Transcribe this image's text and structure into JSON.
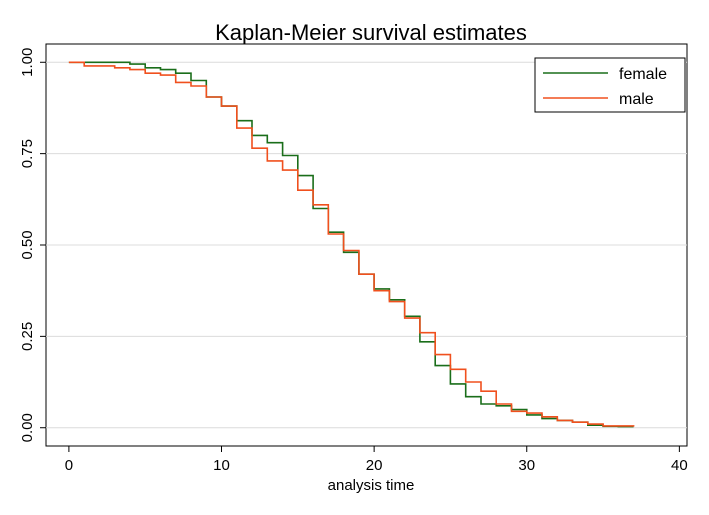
{
  "chart_data": {
    "type": "line",
    "step": true,
    "title": "Kaplan-Meier survival estimates",
    "xlabel": "analysis time",
    "ylabel": "",
    "xlim": [
      -1.5,
      40.5
    ],
    "ylim": [
      -0.05,
      1.05
    ],
    "x_ticks": [
      0,
      10,
      20,
      30,
      40
    ],
    "x_tick_labels": [
      "0",
      "10",
      "20",
      "30",
      "40"
    ],
    "y_ticks": [
      0,
      0.25,
      0.5,
      0.75,
      1.0
    ],
    "y_tick_labels": [
      "0.00",
      "0.25",
      "0.50",
      "0.75",
      "1.00"
    ],
    "grid": "horizontal",
    "legend_position": "top-right",
    "series": [
      {
        "name": "female",
        "color": "#1a6e1a",
        "x": [
          0,
          4,
          5,
          6,
          7,
          8,
          9,
          10,
          11,
          12,
          13,
          14,
          15,
          16,
          17,
          18,
          19,
          20,
          21,
          22,
          23,
          24,
          25,
          26,
          27,
          28,
          29,
          30,
          31,
          32,
          33,
          34,
          35,
          36,
          37
        ],
        "y": [
          1.0,
          0.995,
          0.985,
          0.98,
          0.97,
          0.95,
          0.905,
          0.88,
          0.84,
          0.8,
          0.78,
          0.745,
          0.69,
          0.6,
          0.535,
          0.48,
          0.42,
          0.38,
          0.35,
          0.305,
          0.235,
          0.17,
          0.12,
          0.085,
          0.065,
          0.06,
          0.05,
          0.035,
          0.025,
          0.02,
          0.015,
          0.007,
          0.004,
          0.003,
          0.003
        ]
      },
      {
        "name": "male",
        "color": "#f0501e",
        "x": [
          0,
          1,
          3,
          4,
          5,
          6,
          7,
          8,
          9,
          10,
          11,
          12,
          13,
          14,
          15,
          16,
          17,
          18,
          19,
          20,
          21,
          22,
          23,
          24,
          25,
          26,
          27,
          28,
          29,
          30,
          31,
          32,
          33,
          34,
          35,
          37
        ],
        "y": [
          1.0,
          0.99,
          0.985,
          0.98,
          0.97,
          0.965,
          0.945,
          0.935,
          0.905,
          0.88,
          0.82,
          0.765,
          0.73,
          0.705,
          0.65,
          0.61,
          0.53,
          0.485,
          0.42,
          0.375,
          0.345,
          0.3,
          0.26,
          0.2,
          0.16,
          0.125,
          0.1,
          0.065,
          0.045,
          0.04,
          0.03,
          0.02,
          0.015,
          0.01,
          0.005,
          0.003
        ]
      }
    ]
  }
}
